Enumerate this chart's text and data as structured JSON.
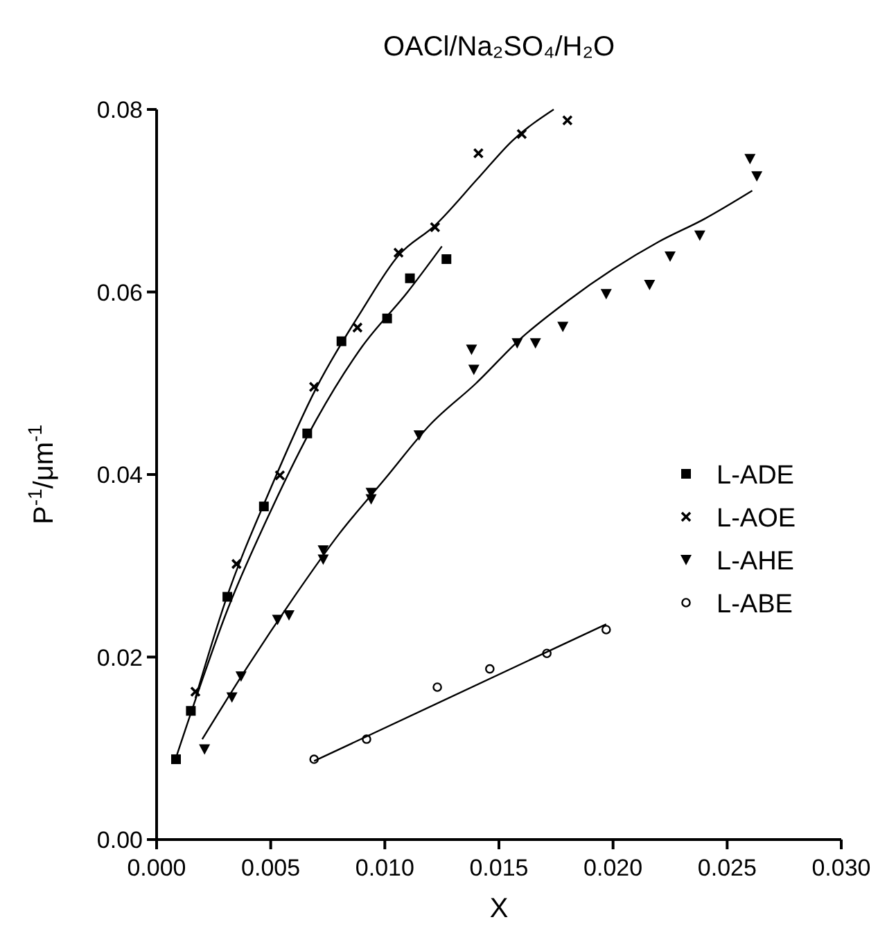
{
  "chart_data": {
    "type": "scatter",
    "title": "OACl/Na₂SO₄/H₂O",
    "xlabel": "X",
    "ylabel": "P$^{-1}$/μm$^{-1}$",
    "xlim": [
      0,
      0.03
    ],
    "xticks": [
      {
        "value": 0,
        "label": "0.000"
      },
      {
        "value": 0.005,
        "label": "0.005"
      },
      {
        "value": 0.01,
        "label": "0.010"
      },
      {
        "value": 0.015,
        "label": "0.015"
      },
      {
        "value": 0.02,
        "label": "0.020"
      },
      {
        "value": 0.025,
        "label": "0.025"
      },
      {
        "value": 0.03,
        "label": "0.030"
      }
    ],
    "ylim": [
      0,
      0.08
    ],
    "yticks": [
      {
        "value": 0,
        "label": "0.00"
      },
      {
        "value": 0.02,
        "label": "0.02"
      },
      {
        "value": 0.04,
        "label": "0.04"
      },
      {
        "value": 0.06,
        "label": "0.06"
      },
      {
        "value": 0.08,
        "label": "0.08"
      }
    ],
    "grid": false,
    "legend": "right",
    "series": [
      {
        "name": "L-ADE",
        "color": "#000000",
        "marker": "square",
        "x": [
          0.00085,
          0.0015,
          0.0031,
          0.0047,
          0.0066,
          0.0081,
          0.0101,
          0.0111,
          0.0127
        ],
        "values": [
          0.0088,
          0.0141,
          0.0266,
          0.0365,
          0.0445,
          0.0546,
          0.0571,
          0.0615,
          0.0636
        ]
      },
      {
        "name": "L-AOE",
        "color": "#000000",
        "marker": "cross",
        "x": [
          0.0017,
          0.0035,
          0.0054,
          0.0069,
          0.0088,
          0.0106,
          0.0122,
          0.0141,
          0.016,
          0.018
        ],
        "values": [
          0.0162,
          0.0302,
          0.0399,
          0.0496,
          0.0561,
          0.0643,
          0.0671,
          0.0752,
          0.0773,
          0.0788
        ]
      },
      {
        "name": "L-AHE",
        "color": "#000000",
        "marker": "triangle",
        "x": [
          0.0021,
          0.0033,
          0.0037,
          0.0053,
          0.0058,
          0.0073,
          0.0073,
          0.0094,
          0.0094,
          0.0115,
          0.0138,
          0.0139,
          0.0158,
          0.0166,
          0.0178,
          0.0197,
          0.0216,
          0.0225,
          0.0238,
          0.026,
          0.0263
        ],
        "values": [
          0.0099,
          0.0156,
          0.0179,
          0.0241,
          0.0246,
          0.0317,
          0.0307,
          0.038,
          0.0373,
          0.0443,
          0.0537,
          0.0515,
          0.0544,
          0.0544,
          0.0562,
          0.0598,
          0.0608,
          0.0639,
          0.0662,
          0.0746,
          0.0727
        ]
      },
      {
        "name": "L-ABE",
        "color": "#000000",
        "marker": "circle",
        "x": [
          0.0069,
          0.0092,
          0.0123,
          0.0146,
          0.0171,
          0.0197
        ],
        "values": [
          0.0088,
          0.011,
          0.0167,
          0.0187,
          0.0204,
          0.023
        ]
      },
      {
        "type": "line",
        "color": "#000000",
        "marker": "none",
        "x": [
          0.0008,
          0.002,
          0.003,
          0.005,
          0.007,
          0.009,
          0.011,
          0.0125
        ],
        "values": [
          0.0086,
          0.0175,
          0.0245,
          0.036,
          0.046,
          0.054,
          0.06,
          0.065
        ]
      },
      {
        "type": "line",
        "color": "#000000",
        "marker": "none",
        "x": [
          0.0017,
          0.003,
          0.005,
          0.007,
          0.009,
          0.0106,
          0.0122,
          0.0141,
          0.0156,
          0.0174
        ],
        "values": [
          0.0155,
          0.026,
          0.0385,
          0.0495,
          0.058,
          0.064,
          0.0673,
          0.0725,
          0.0766,
          0.08
        ]
      },
      {
        "type": "line",
        "color": "#000000",
        "marker": "none",
        "x": [
          0.002,
          0.004,
          0.006,
          0.008,
          0.01,
          0.012,
          0.014,
          0.016,
          0.018,
          0.02,
          0.022,
          0.024,
          0.0261
        ],
        "values": [
          0.011,
          0.019,
          0.0265,
          0.0335,
          0.0395,
          0.0455,
          0.05,
          0.055,
          0.059,
          0.0625,
          0.0655,
          0.068,
          0.0711
        ]
      },
      {
        "type": "line",
        "color": "#000000",
        "marker": "none",
        "x": [
          0.0069,
          0.0197
        ],
        "values": [
          0.0086,
          0.0236
        ]
      }
    ]
  }
}
